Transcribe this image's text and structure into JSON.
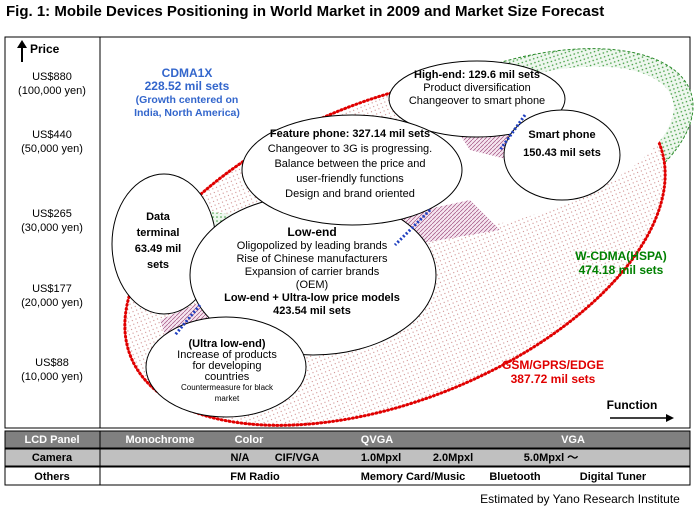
{
  "title": "Fig. 1: Mobile Devices Positioning in World Market in 2009 and Market Size Forecast",
  "price_axis": {
    "label": "Price",
    "levels": [
      {
        "usd": "US$880",
        "yen": "(100,000 yen)"
      },
      {
        "usd": "US$440",
        "yen": "(50,000 yen)"
      },
      {
        "usd": "US$265",
        "yen": "(30,000 yen)"
      },
      {
        "usd": "US$177",
        "yen": "(20,000 yen)"
      },
      {
        "usd": "US$88",
        "yen": "(10,000 yen)"
      }
    ]
  },
  "regions": {
    "cdma1x": [
      "CDMA1X",
      "228.52 mil sets",
      "(Growth centered on",
      "India, North America)"
    ],
    "wcdma": [
      "W-CDMA(HSPA)",
      "474.18 mil sets"
    ],
    "gsm": [
      "GSM/GPRS/EDGE",
      "387.72 mil sets"
    ]
  },
  "segments": {
    "high_end": [
      "High-end: 129.6 mil sets",
      "Product diversification",
      "Changeover to smart phone"
    ],
    "smart_phone": [
      "Smart phone",
      "150.43 mil sets"
    ],
    "feature_phone": [
      "Feature phone: 327.14 mil sets",
      "Changeover to 3G is progressing.",
      "Balance between the price and",
      "user-friendly functions",
      "Design and brand oriented"
    ],
    "data_terminal": [
      "Data",
      "terminal",
      "63.49 mil",
      "sets"
    ],
    "low_end": [
      "Low-end",
      "Oligopolized by leading brands",
      "Rise of Chinese manufacturers",
      "Expansion of carrier brands",
      "(OEM)",
      "Low-end + Ultra-low price models",
      "423.54 mil sets"
    ],
    "ultra_low_end": [
      "(Ultra low-end)",
      "Increase of products",
      "for developing",
      "countries",
      "Countermeasure for black",
      "market"
    ]
  },
  "function_label": "Function",
  "table": {
    "rows": [
      {
        "label": "LCD Panel",
        "cells": [
          "Monochrome",
          "Color",
          "QVGA",
          "VGA"
        ]
      },
      {
        "label": "Camera",
        "cells": [
          "N/A",
          "CIF/VGA",
          "1.0Mpxl",
          "2.0Mpxl",
          "5.0Mpxl ～"
        ]
      },
      {
        "label": "Others",
        "cells": [
          "FM Radio",
          "Memory Card/Music",
          "Bluetooth",
          "Digital Tuner"
        ]
      }
    ]
  },
  "source": "Estimated by Yano Research Institute"
}
